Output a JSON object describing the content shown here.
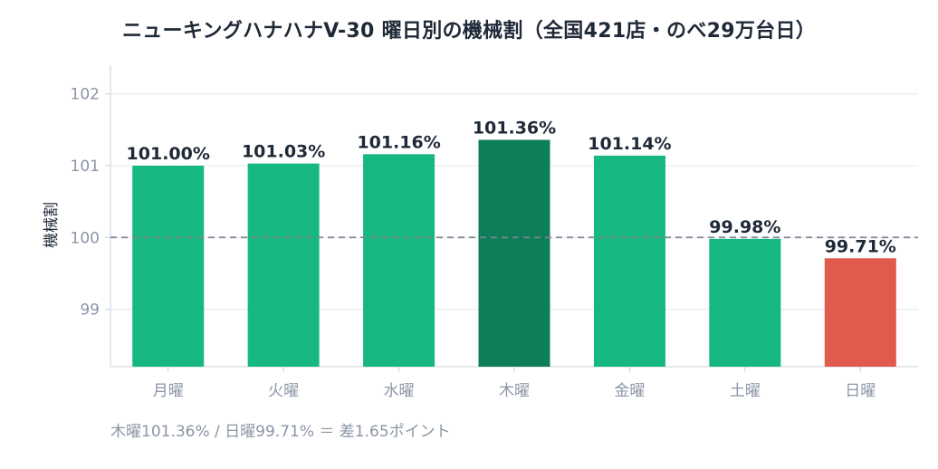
{
  "chart_data": {
    "type": "bar",
    "title": "ニューキングハナハナV-30 曜日別の機械割（全国421店・のべ29万台日）",
    "ylabel": "機械割",
    "xlabel": "",
    "categories": [
      "月曜",
      "火曜",
      "水曜",
      "木曜",
      "金曜",
      "土曜",
      "日曜"
    ],
    "values": [
      101.0,
      101.03,
      101.16,
      101.36,
      101.14,
      99.98,
      99.71
    ],
    "value_labels": [
      "101.00%",
      "101.03%",
      "101.16%",
      "101.36%",
      "101.14%",
      "99.98%",
      "99.71%"
    ],
    "bar_colors": [
      "#17b87f",
      "#17b87f",
      "#17b87f",
      "#0d7f58",
      "#17b87f",
      "#17b87f",
      "#e05a4e"
    ],
    "yticks": [
      99,
      100,
      101,
      102
    ],
    "ytick_labels": [
      "99",
      "100",
      "101",
      "102"
    ],
    "ylim": [
      98.2,
      102.4
    ],
    "reference_line": 100,
    "grid": true,
    "legend": "none"
  },
  "footnote": "木曜101.36% / 日曜99.71% ＝ 差1.65ポイント"
}
